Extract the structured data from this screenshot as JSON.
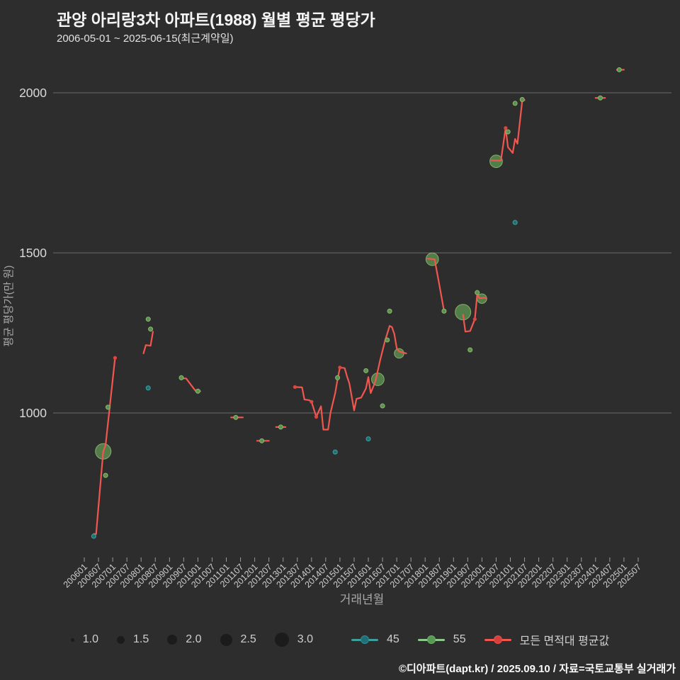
{
  "header": {
    "title": "관양 아리랑3차 아파트(1988) 월별 평균 평당가",
    "subtitle": "2006-05-01 ~ 2025-06-15(최근계약일)"
  },
  "footer": {
    "credit": "©디아파트(dapt.kr) / 2025.09.10 / 자료=국토교통부 실거래가"
  },
  "legend": {
    "sizes": [
      "1.0",
      "1.5",
      "2.0",
      "2.5",
      "3.0"
    ],
    "series": [
      "45",
      "55",
      "모든 면적대 평균값"
    ]
  },
  "chart_data": {
    "type": "scatter",
    "title": "관양 아리랑3차 아파트(1988) 월별 평균 평당가",
    "xlabel": "거래년월",
    "ylabel": "평균 평당가(만 원)",
    "y_ticks": [
      1000,
      1500,
      2000
    ],
    "ylim": [
      560,
      2120
    ],
    "grid": "horizontal-only",
    "legend_position": "bottom",
    "x_ticks": [
      "200601",
      "200607",
      "200701",
      "200707",
      "200801",
      "200807",
      "200901",
      "200907",
      "201001",
      "201007",
      "201101",
      "201107",
      "201201",
      "201207",
      "201301",
      "201307",
      "201401",
      "201407",
      "201501",
      "201507",
      "201601",
      "201607",
      "201701",
      "201707",
      "201801",
      "201807",
      "201901",
      "201907",
      "202001",
      "202007",
      "202101",
      "202107",
      "202201",
      "202207",
      "202301",
      "202307",
      "202401",
      "202407",
      "202501",
      "202507"
    ],
    "series": [
      {
        "name": "모든 면적대 평균값",
        "type": "line",
        "color": "#f1564f",
        "segments": [
          [
            [
              "200605",
              622
            ],
            [
              "200606",
              622
            ],
            [
              "200609",
              880
            ],
            [
              "200610",
              900
            ],
            [
              "200702",
              1172
            ]
          ],
          [
            [
              "200802",
              1186
            ],
            [
              "200803",
              1212
            ],
            [
              "200805",
              1210
            ],
            [
              "200806",
              1254
            ]
          ],
          [
            [
              "200906",
              1108
            ],
            [
              "200908",
              1108
            ],
            [
              "200912",
              1069
            ],
            [
              "201002",
              1068
            ]
          ],
          [
            [
              "201103",
              986
            ],
            [
              "201108",
              986
            ]
          ],
          [
            [
              "201202",
              913
            ],
            [
              "201207",
              913
            ]
          ],
          [
            [
              "201210",
              956
            ],
            [
              "201302",
              956
            ]
          ],
          [
            [
              "201306",
              1081
            ],
            [
              "201309",
              1080
            ],
            [
              "201310",
              1042
            ],
            [
              "201312",
              1040
            ],
            [
              "201401",
              1035
            ],
            [
              "201403",
              988
            ],
            [
              "201405",
              1021
            ],
            [
              "201406",
              948
            ],
            [
              "201408",
              948
            ],
            [
              "201409",
              1000
            ],
            [
              "201411",
              1062
            ],
            [
              "201412",
              1105
            ],
            [
              "201501",
              1142
            ],
            [
              "201503",
              1140
            ],
            [
              "201504",
              1114
            ],
            [
              "201505",
              1092
            ],
            [
              "201507",
              1008
            ],
            [
              "201508",
              1044
            ],
            [
              "201510",
              1048
            ],
            [
              "201512",
              1077
            ],
            [
              "201601",
              1112
            ],
            [
              "201602",
              1062
            ],
            [
              "201604",
              1099
            ],
            [
              "201606",
              1165
            ],
            [
              "201608",
              1224
            ],
            [
              "201610",
              1272
            ],
            [
              "201611",
              1268
            ],
            [
              "201612",
              1246
            ],
            [
              "201701",
              1202
            ],
            [
              "201702",
              1192
            ],
            [
              "201705",
              1186
            ]
          ],
          [
            [
              "201802",
              1482
            ],
            [
              "201805",
              1480
            ],
            [
              "201807",
              1400
            ],
            [
              "201809",
              1318
            ]
          ],
          [
            [
              "201905",
              1307
            ],
            [
              "201906",
              1254
            ],
            [
              "201908",
              1256
            ],
            [
              "201910",
              1293
            ],
            [
              "201911",
              1370
            ],
            [
              "201912",
              1358
            ],
            [
              "202002",
              1360
            ],
            [
              "202003",
              1357
            ]
          ],
          [
            [
              "202005",
              1789
            ],
            [
              "202009",
              1788
            ],
            [
              "202011",
              1890
            ],
            [
              "202012",
              1830
            ],
            [
              "202102",
              1812
            ],
            [
              "202103",
              1856
            ],
            [
              "202104",
              1841
            ],
            [
              "202106",
              1974
            ],
            [
              "202107",
              1977
            ]
          ],
          [
            [
              "202401",
              1984
            ],
            [
              "202405",
              1984
            ]
          ],
          [
            [
              "202410",
              2072
            ],
            [
              "202501",
              2072
            ]
          ]
        ],
        "markers": [
          [
            "200702",
            1172
          ],
          [
            "201306",
            1081
          ],
          [
            "201401",
            1035
          ],
          [
            "201403",
            988
          ],
          [
            "201501",
            1142
          ],
          [
            "201910",
            1293
          ],
          [
            "202011",
            1890
          ],
          [
            "202403",
            1984
          ],
          [
            "202411",
            2072
          ]
        ]
      },
      {
        "name": "55",
        "type": "bubble",
        "color": "#5d9150",
        "points": [
          [
            "200609",
            880,
            3.0
          ],
          [
            "200610",
            805,
            1.0
          ],
          [
            "200611",
            1018,
            1.0
          ],
          [
            "200804",
            1293,
            1.0
          ],
          [
            "200805",
            1262,
            1.0
          ],
          [
            "200906",
            1110,
            1.0
          ],
          [
            "201001",
            1068,
            1.0
          ],
          [
            "201105",
            986,
            1.0
          ],
          [
            "201204",
            913,
            1.0
          ],
          [
            "201212",
            956,
            1.0
          ],
          [
            "201412",
            1110,
            1.0
          ],
          [
            "201512",
            1132,
            1.0
          ],
          [
            "201605",
            1105,
            2.5
          ],
          [
            "201607",
            1022,
            1.0
          ],
          [
            "201609",
            1228,
            1.0
          ],
          [
            "201610",
            1318,
            1.0
          ],
          [
            "201702",
            1186,
            2.0
          ],
          [
            "201804",
            1480,
            2.5
          ],
          [
            "201809",
            1318,
            1.0
          ],
          [
            "201905",
            1315,
            3.0
          ],
          [
            "201908",
            1197,
            1.0
          ],
          [
            "201911",
            1376,
            1.0
          ],
          [
            "202001",
            1357,
            2.0
          ],
          [
            "202007",
            1786,
            2.5
          ],
          [
            "202012",
            1878,
            1.0
          ],
          [
            "202103",
            1967,
            1.0
          ],
          [
            "202106",
            1979,
            1.0
          ],
          [
            "202403",
            1984,
            1.0
          ],
          [
            "202411",
            2072,
            1.0
          ]
        ]
      },
      {
        "name": "45",
        "type": "scatter",
        "color": "#2e8f96",
        "points": [
          [
            "200605",
            615,
            1.0
          ],
          [
            "200804",
            1078,
            1.0
          ],
          [
            "201411",
            878,
            1.0
          ],
          [
            "201601",
            919,
            1.0
          ],
          [
            "202103",
            1595,
            1.0
          ]
        ]
      }
    ],
    "size_legend": [
      1.0,
      1.5,
      2.0,
      2.5,
      3.0
    ]
  }
}
